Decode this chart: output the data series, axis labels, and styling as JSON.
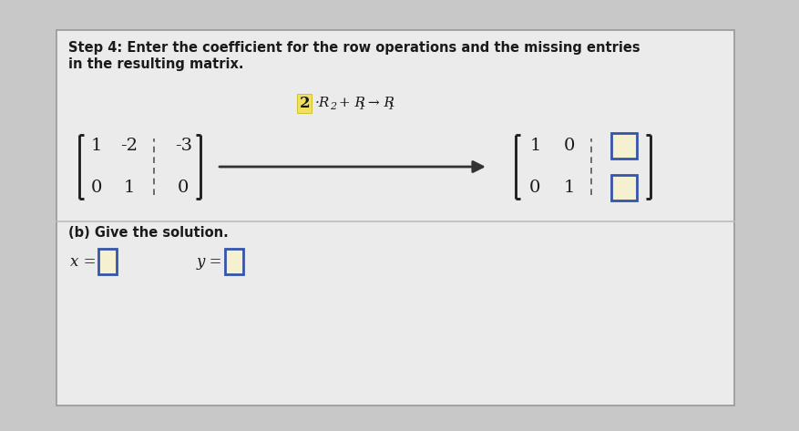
{
  "title_line1": "Step 4: Enter the coefficient for the row operations and the missing entries",
  "title_line2": "in the resulting matrix.",
  "bg_color": "#c8c8c8",
  "card_color": "#ebebeb",
  "card_border": "#999999",
  "text_color": "#1a1a1a",
  "section_b_label": "(b) Give the solution.",
  "input_box_border": "#3355aa",
  "input_box_fill": "#f5f0d0",
  "highlight_color": "#f0e060",
  "highlight_border": "#c8b800",
  "font_size_title": 10.5,
  "font_size_matrix": 14,
  "font_size_section": 10.5,
  "divider_color": "#bbbbbb",
  "dashed_line_color": "#555555",
  "arrow_color": "#333333"
}
